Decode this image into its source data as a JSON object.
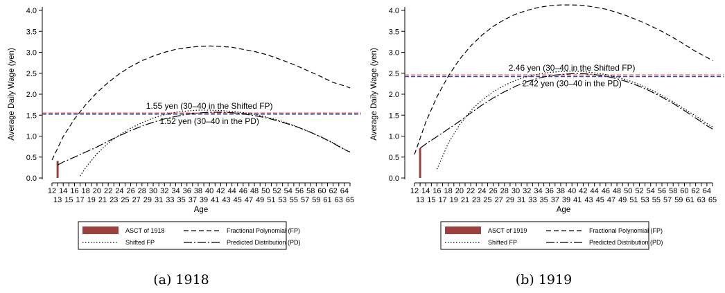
{
  "chart_data": [
    {
      "type": "line",
      "caption": "(a) 1918",
      "xlabel": "Age",
      "ylabel": "Average Daily Wage (yen)",
      "xlim": [
        12,
        65
      ],
      "ylim": [
        0,
        4
      ],
      "yticks": [
        "0.0",
        "0.5",
        "1.0",
        "1.5",
        "2.0",
        "2.5",
        "3.0",
        "3.5",
        "4.0"
      ],
      "xticks_top": [
        "12",
        "14",
        "16",
        "18",
        "20",
        "22",
        "24",
        "26",
        "28",
        "30",
        "32",
        "34",
        "36",
        "38",
        "40",
        "42",
        "44",
        "46",
        "48",
        "50",
        "52",
        "54",
        "56",
        "58",
        "60",
        "62",
        "64"
      ],
      "xticks_bottom": [
        "13",
        "15",
        "17",
        "19",
        "21",
        "23",
        "25",
        "27",
        "29",
        "31",
        "33",
        "35",
        "37",
        "39",
        "41",
        "43",
        "45",
        "47",
        "49",
        "51",
        "53",
        "55",
        "57",
        "59",
        "61",
        "63",
        "65"
      ],
      "bar": {
        "name": "ASCT of 1918",
        "x": 13,
        "value": 0.41,
        "color": "#9b3f3f"
      },
      "series": [
        {
          "name": "Fractional Polynomial (FP)",
          "style": "dash",
          "x": [
            12,
            14,
            16,
            18,
            20,
            22,
            24,
            26,
            28,
            30,
            32,
            34,
            36,
            38,
            40,
            42,
            44,
            46,
            48,
            50,
            52,
            54,
            56,
            58,
            60,
            62,
            64,
            65
          ],
          "values": [
            0.43,
            0.99,
            1.41,
            1.75,
            2.04,
            2.28,
            2.49,
            2.66,
            2.8,
            2.91,
            3.0,
            3.07,
            3.11,
            3.14,
            3.15,
            3.14,
            3.12,
            3.07,
            3.02,
            2.95,
            2.86,
            2.76,
            2.65,
            2.53,
            2.41,
            2.28,
            2.2,
            2.15
          ]
        },
        {
          "name": "Shifted FP",
          "style": "dot",
          "x": [
            17,
            18,
            20,
            22,
            24,
            26,
            28,
            30,
            32,
            34,
            36,
            38,
            40,
            42,
            44,
            46,
            48,
            50,
            52,
            54,
            56,
            58,
            60,
            62,
            64,
            65
          ],
          "values": [
            0.05,
            0.25,
            0.58,
            0.83,
            1.03,
            1.19,
            1.32,
            1.43,
            1.51,
            1.57,
            1.6,
            1.62,
            1.62,
            1.61,
            1.59,
            1.56,
            1.52,
            1.46,
            1.39,
            1.3,
            1.2,
            1.09,
            0.97,
            0.84,
            0.69,
            0.62
          ]
        },
        {
          "name": "Predicted Distribution (PD)",
          "style": "dashdot",
          "x": [
            13,
            14,
            16,
            18,
            20,
            22,
            24,
            26,
            28,
            30,
            32,
            34,
            36,
            38,
            40,
            42,
            44,
            46,
            48,
            50,
            52,
            54,
            56,
            58,
            60,
            62,
            64,
            65
          ],
          "values": [
            0.31,
            0.38,
            0.5,
            0.62,
            0.74,
            0.88,
            1.01,
            1.13,
            1.24,
            1.33,
            1.41,
            1.47,
            1.52,
            1.55,
            1.57,
            1.57,
            1.56,
            1.53,
            1.49,
            1.44,
            1.37,
            1.29,
            1.2,
            1.09,
            0.97,
            0.83,
            0.68,
            0.62
          ]
        }
      ],
      "hlines": [
        {
          "value": 1.55,
          "color": "#cc2233",
          "label": "1.55 yen (30–40 in the Shifted FP)",
          "label_x": 40,
          "label_pos": "above"
        },
        {
          "value": 1.52,
          "color": "#3344bb",
          "label": "1.52 yen (30–40 in the PD)",
          "label_x": 40,
          "label_pos": "below"
        }
      ],
      "legend": {
        "position": "bottom",
        "items": [
          {
            "label": "ASCT of 1918",
            "symbol": "bar"
          },
          {
            "label": "Fractional Polynomial (FP)",
            "symbol": "dash"
          },
          {
            "label": "Shifted FP",
            "symbol": "dot"
          },
          {
            "label": "Predicted Distribution (PD)",
            "symbol": "dashdot"
          }
        ]
      }
    },
    {
      "type": "line",
      "caption": "(b) 1919",
      "xlabel": "Age",
      "ylabel": "Average Daily Wage (yen)",
      "xlim": [
        12,
        65
      ],
      "ylim": [
        0,
        4
      ],
      "yticks": [
        "0.0",
        "0.5",
        "1.0",
        "1.5",
        "2.0",
        "2.5",
        "3.0",
        "3.5",
        "4.0"
      ],
      "xticks_top": [
        "12",
        "14",
        "16",
        "18",
        "20",
        "22",
        "24",
        "26",
        "28",
        "30",
        "32",
        "34",
        "36",
        "38",
        "40",
        "42",
        "44",
        "46",
        "48",
        "50",
        "52",
        "54",
        "56",
        "58",
        "60",
        "62",
        "64"
      ],
      "xticks_bottom": [
        "13",
        "15",
        "17",
        "19",
        "21",
        "23",
        "25",
        "27",
        "29",
        "31",
        "33",
        "35",
        "37",
        "39",
        "41",
        "43",
        "45",
        "47",
        "49",
        "51",
        "53",
        "55",
        "57",
        "59",
        "61",
        "63",
        "65"
      ],
      "bar": {
        "name": "ASCT of 1919",
        "x": 13,
        "value": 0.71,
        "color": "#9b3f3f"
      },
      "series": [
        {
          "name": "Fractional Polynomial (FP)",
          "style": "dash",
          "x": [
            12,
            14,
            16,
            18,
            20,
            22,
            24,
            26,
            28,
            30,
            32,
            34,
            36,
            38,
            40,
            42,
            44,
            46,
            48,
            50,
            52,
            54,
            56,
            58,
            60,
            62,
            64,
            65
          ],
          "values": [
            0.56,
            1.33,
            1.94,
            2.43,
            2.83,
            3.15,
            3.41,
            3.62,
            3.78,
            3.91,
            4.0,
            4.07,
            4.11,
            4.13,
            4.13,
            4.12,
            4.08,
            4.03,
            3.95,
            3.86,
            3.75,
            3.63,
            3.5,
            3.35,
            3.19,
            3.02,
            2.88,
            2.8
          ]
        },
        {
          "name": "Shifted FP",
          "style": "dot",
          "x": [
            16,
            18,
            20,
            22,
            24,
            26,
            28,
            30,
            32,
            34,
            36,
            38,
            40,
            42,
            44,
            46,
            48,
            50,
            52,
            54,
            56,
            58,
            60,
            62,
            64,
            65
          ],
          "values": [
            0.21,
            0.83,
            1.27,
            1.61,
            1.86,
            2.06,
            2.21,
            2.33,
            2.42,
            2.48,
            2.52,
            2.54,
            2.55,
            2.54,
            2.51,
            2.47,
            2.41,
            2.33,
            2.23,
            2.11,
            1.97,
            1.82,
            1.65,
            1.48,
            1.3,
            1.22
          ]
        },
        {
          "name": "Predicted Distribution (PD)",
          "style": "dashdot",
          "x": [
            13,
            14,
            16,
            18,
            20,
            22,
            24,
            26,
            28,
            30,
            32,
            34,
            36,
            38,
            40,
            42,
            44,
            46,
            48,
            50,
            52,
            54,
            56,
            58,
            60,
            62,
            64,
            65
          ],
          "values": [
            0.71,
            0.81,
            0.99,
            1.17,
            1.35,
            1.55,
            1.74,
            1.91,
            2.06,
            2.19,
            2.3,
            2.38,
            2.44,
            2.47,
            2.49,
            2.49,
            2.47,
            2.43,
            2.37,
            2.29,
            2.19,
            2.07,
            1.93,
            1.78,
            1.61,
            1.43,
            1.25,
            1.17
          ]
        }
      ],
      "hlines": [
        {
          "value": 2.46,
          "color": "#cc2233",
          "label": "2.46 yen (30–40 in the Shifted FP)",
          "label_x": 40,
          "label_pos": "above"
        },
        {
          "value": 2.42,
          "color": "#3344bb",
          "label": "2.42 yen (30–40 in the PD)",
          "label_x": 40,
          "label_pos": "below"
        }
      ],
      "legend": {
        "position": "bottom",
        "items": [
          {
            "label": "ASCT of 1919",
            "symbol": "bar"
          },
          {
            "label": "Fractional Polynomial (FP)",
            "symbol": "dash"
          },
          {
            "label": "Shifted FP",
            "symbol": "dot"
          },
          {
            "label": "Predicted Distribution (PD)",
            "symbol": "dashdot"
          }
        ]
      }
    }
  ]
}
